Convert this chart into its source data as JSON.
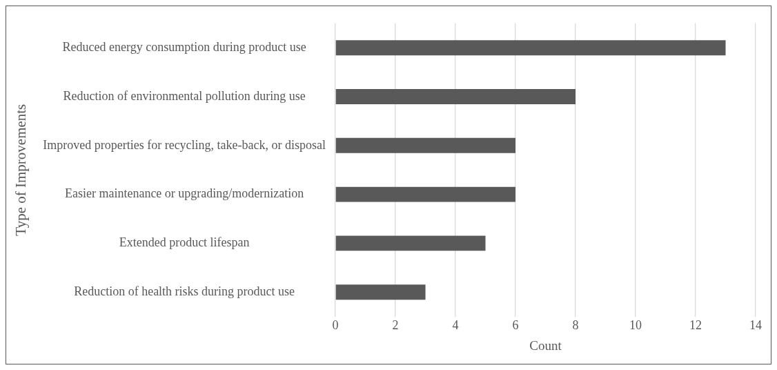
{
  "chart_data": {
    "type": "bar",
    "orientation": "horizontal",
    "xlabel": "Count",
    "ylabel": "Type of Improvements",
    "categories": [
      "Reduced energy consumption during product use",
      "Reduction of environmental pollution during use",
      "Improved properties for recycling, take-back, or disposal",
      "Easier maintenance or upgrading/modernization",
      "Extended product lifespan",
      "Reduction of health risks during product use"
    ],
    "values": [
      13,
      8,
      6,
      6,
      5,
      3
    ],
    "color": "#595959",
    "xlim": [
      0,
      14
    ],
    "xticks": [
      0,
      2,
      4,
      6,
      8,
      10,
      12,
      14
    ],
    "grid": "x"
  }
}
